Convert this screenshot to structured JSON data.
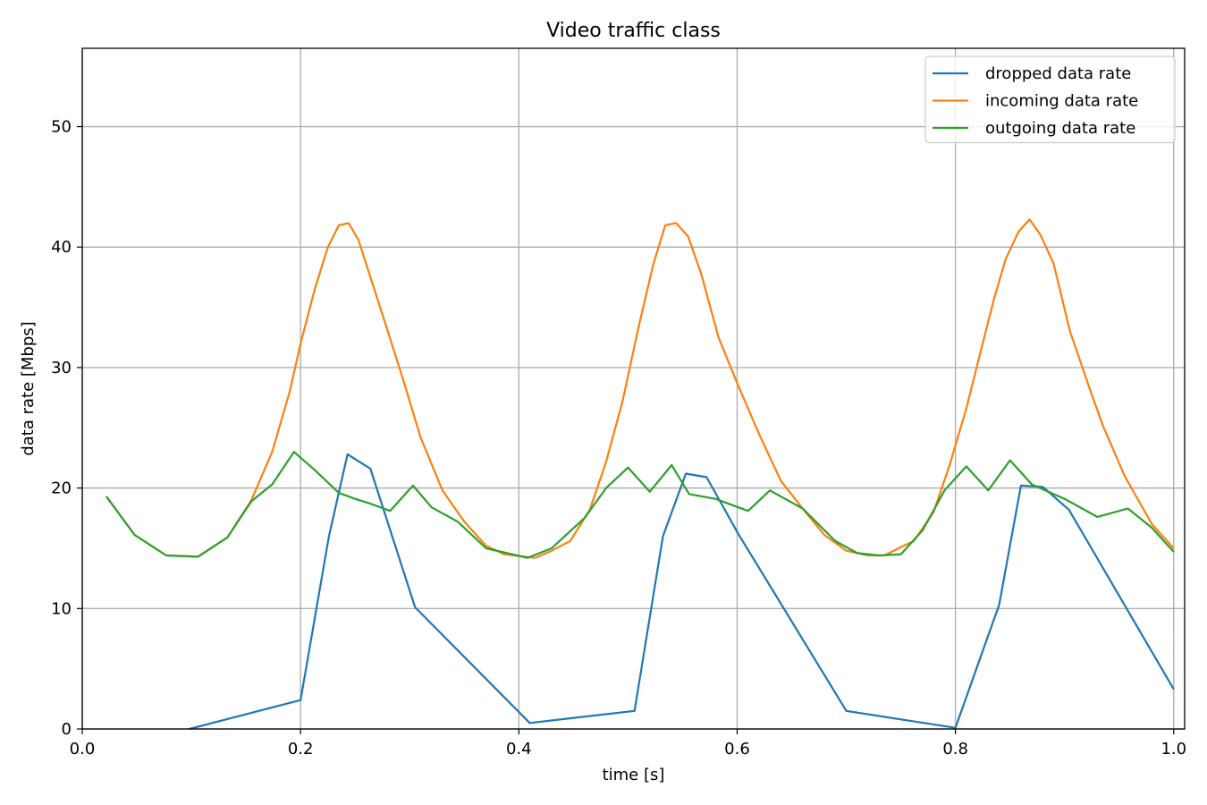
{
  "chart_data": {
    "type": "line",
    "title": "Video traffic class",
    "xlabel": "time [s]",
    "ylabel": "data rate [Mbps]",
    "xlim": [
      0.0,
      1.01
    ],
    "ylim": [
      0,
      56.5
    ],
    "xticks": [
      0.0,
      0.2,
      0.4,
      0.6,
      0.8,
      1.0
    ],
    "xtick_labels": [
      "0.0",
      "0.2",
      "0.4",
      "0.6",
      "0.8",
      "1.0"
    ],
    "yticks": [
      0,
      10,
      20,
      30,
      40,
      50
    ],
    "ytick_labels": [
      "0",
      "10",
      "20",
      "30",
      "40",
      "50"
    ],
    "grid": true,
    "legend_position": "top-right",
    "series": [
      {
        "name": "dropped data rate",
        "color": "#1f77b4",
        "points": [
          [
            0.098,
            0.0
          ],
          [
            0.2,
            2.4
          ],
          [
            0.226,
            16.0
          ],
          [
            0.243,
            22.8
          ],
          [
            0.264,
            21.6
          ],
          [
            0.305,
            10.1
          ],
          [
            0.41,
            0.5
          ],
          [
            0.506,
            1.5
          ],
          [
            0.532,
            16.0
          ],
          [
            0.553,
            21.2
          ],
          [
            0.572,
            20.9
          ],
          [
            0.601,
            16.2
          ],
          [
            0.7,
            1.5
          ],
          [
            0.8,
            0.1
          ],
          [
            0.84,
            10.3
          ],
          [
            0.86,
            20.2
          ],
          [
            0.88,
            20.1
          ],
          [
            0.904,
            18.2
          ],
          [
            1.0,
            3.3
          ]
        ]
      },
      {
        "name": "incoming data rate",
        "color": "#ff7f0e",
        "points": [
          [
            0.022,
            19.3
          ],
          [
            0.048,
            16.1
          ],
          [
            0.077,
            14.4
          ],
          [
            0.106,
            14.3
          ],
          [
            0.133,
            15.9
          ],
          [
            0.155,
            19.0
          ],
          [
            0.174,
            23.0
          ],
          [
            0.19,
            28.0
          ],
          [
            0.2,
            32.0
          ],
          [
            0.213,
            36.5
          ],
          [
            0.225,
            40.0
          ],
          [
            0.235,
            41.8
          ],
          [
            0.244,
            42.0
          ],
          [
            0.253,
            40.6
          ],
          [
            0.264,
            37.5
          ],
          [
            0.28,
            33.0
          ],
          [
            0.294,
            29.0
          ],
          [
            0.31,
            24.2
          ],
          [
            0.33,
            19.8
          ],
          [
            0.35,
            17.2
          ],
          [
            0.37,
            15.2
          ],
          [
            0.387,
            14.5
          ],
          [
            0.405,
            14.3
          ],
          [
            0.415,
            14.2
          ],
          [
            0.43,
            14.8
          ],
          [
            0.447,
            15.6
          ],
          [
            0.465,
            18.2
          ],
          [
            0.48,
            22.2
          ],
          [
            0.495,
            27.2
          ],
          [
            0.51,
            33.5
          ],
          [
            0.523,
            38.5
          ],
          [
            0.534,
            41.8
          ],
          [
            0.544,
            42.0
          ],
          [
            0.555,
            40.9
          ],
          [
            0.567,
            37.8
          ],
          [
            0.583,
            32.5
          ],
          [
            0.6,
            28.7
          ],
          [
            0.62,
            24.5
          ],
          [
            0.64,
            20.6
          ],
          [
            0.66,
            18.3
          ],
          [
            0.68,
            16.1
          ],
          [
            0.7,
            14.8
          ],
          [
            0.72,
            14.4
          ],
          [
            0.735,
            14.4
          ],
          [
            0.75,
            15.1
          ],
          [
            0.762,
            15.6
          ],
          [
            0.78,
            18.0
          ],
          [
            0.795,
            22.0
          ],
          [
            0.81,
            26.6
          ],
          [
            0.823,
            31.3
          ],
          [
            0.835,
            35.6
          ],
          [
            0.846,
            39.0
          ],
          [
            0.858,
            41.3
          ],
          [
            0.868,
            42.3
          ],
          [
            0.878,
            41.0
          ],
          [
            0.89,
            38.6
          ],
          [
            0.905,
            33.0
          ],
          [
            0.922,
            28.5
          ],
          [
            0.935,
            25.2
          ],
          [
            0.955,
            21.0
          ],
          [
            0.98,
            17.0
          ],
          [
            1.0,
            15.0
          ]
        ]
      },
      {
        "name": "outgoing data rate",
        "color": "#2ca02c",
        "points": [
          [
            0.022,
            19.3
          ],
          [
            0.048,
            16.1
          ],
          [
            0.077,
            14.4
          ],
          [
            0.106,
            14.3
          ],
          [
            0.133,
            15.9
          ],
          [
            0.155,
            18.9
          ],
          [
            0.174,
            20.3
          ],
          [
            0.194,
            23.0
          ],
          [
            0.213,
            21.5
          ],
          [
            0.235,
            19.6
          ],
          [
            0.25,
            19.1
          ],
          [
            0.264,
            18.7
          ],
          [
            0.282,
            18.1
          ],
          [
            0.303,
            20.2
          ],
          [
            0.32,
            18.4
          ],
          [
            0.344,
            17.2
          ],
          [
            0.37,
            15.0
          ],
          [
            0.408,
            14.2
          ],
          [
            0.43,
            15.0
          ],
          [
            0.46,
            17.5
          ],
          [
            0.48,
            20.0
          ],
          [
            0.5,
            21.7
          ],
          [
            0.52,
            19.7
          ],
          [
            0.54,
            21.9
          ],
          [
            0.556,
            19.5
          ],
          [
            0.58,
            19.1
          ],
          [
            0.61,
            18.1
          ],
          [
            0.63,
            19.8
          ],
          [
            0.66,
            18.3
          ],
          [
            0.69,
            15.6
          ],
          [
            0.71,
            14.6
          ],
          [
            0.73,
            14.4
          ],
          [
            0.75,
            14.5
          ],
          [
            0.77,
            16.5
          ],
          [
            0.79,
            19.8
          ],
          [
            0.81,
            21.8
          ],
          [
            0.83,
            19.8
          ],
          [
            0.85,
            22.3
          ],
          [
            0.87,
            20.3
          ],
          [
            0.9,
            19.1
          ],
          [
            0.93,
            17.6
          ],
          [
            0.958,
            18.3
          ],
          [
            0.98,
            16.7
          ],
          [
            1.0,
            14.7
          ]
        ]
      }
    ]
  }
}
